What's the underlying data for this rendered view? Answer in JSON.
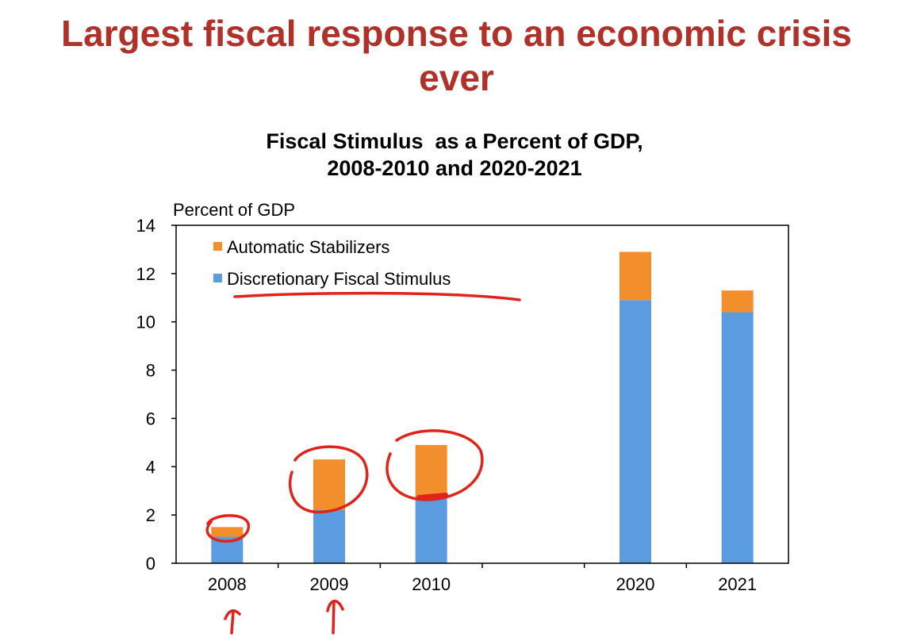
{
  "slide": {
    "title_line1": "Largest fiscal response to an economic crisis",
    "title_line2": "ever",
    "title_color": "#b0302a"
  },
  "chart_data": {
    "type": "bar",
    "stacked": true,
    "title_line1": "Fiscal Stimulus  as a Percent of GDP,",
    "title_line2": "2008-2010 and 2020-2021",
    "ylabel": "Percent of GDP",
    "xlabel": "",
    "categories": [
      "2008",
      "2009",
      "2010",
      "",
      "2020",
      "2021"
    ],
    "ylim": [
      0,
      14
    ],
    "yticks": [
      0,
      2,
      4,
      6,
      8,
      10,
      12,
      14
    ],
    "grid": false,
    "legend": "top-left",
    "series": [
      {
        "name": "Discretionary Fiscal Stimulus",
        "color": "#5b9be0",
        "values": [
          1.1,
          2.2,
          2.7,
          null,
          10.9,
          10.4
        ]
      },
      {
        "name": "Automatic Stabilizers",
        "color": "#f28e2b",
        "values": [
          0.4,
          2.1,
          2.2,
          null,
          2.0,
          0.9
        ]
      }
    ]
  },
  "annotation_color": "#e0241b"
}
